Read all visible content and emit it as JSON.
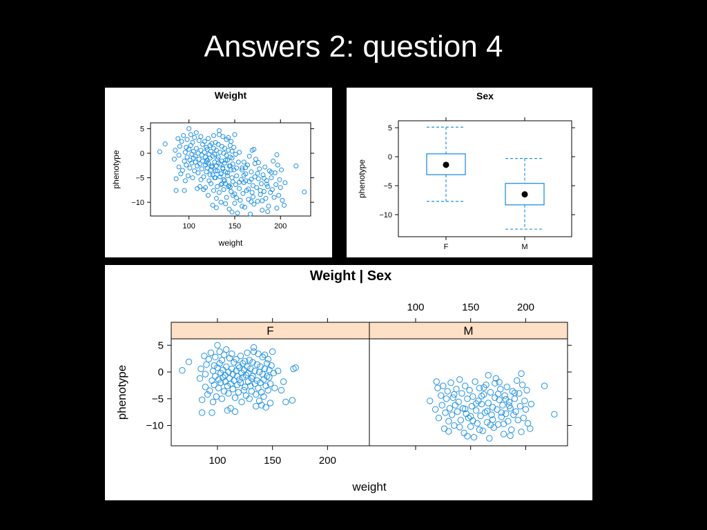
{
  "slide": {
    "title": "Answers 2: question 4"
  },
  "colors": {
    "points": "#1e90e6",
    "strip": "#fde0c5",
    "background": "#000000",
    "panel": "#ffffff"
  },
  "chart_data": [
    {
      "id": "weight",
      "type": "scatter",
      "title": "Weight",
      "xlabel": "weight",
      "ylabel": "phenotype",
      "xlim": [
        58,
        233
      ],
      "ylim": [
        -12.8,
        6.2
      ],
      "xticks": [
        100,
        150,
        200
      ],
      "yticks": [
        5,
        0,
        -5,
        -10
      ],
      "note": "union of F and M points"
    },
    {
      "id": "sex",
      "type": "box",
      "title": "Sex",
      "xlabel": "",
      "ylabel": "phenotype",
      "categories": [
        "F",
        "M"
      ],
      "ylim": [
        -13.8,
        6.2
      ],
      "yticks": [
        5,
        0,
        -5,
        -10
      ],
      "boxes": [
        {
          "category": "F",
          "whisker_low": -7.7,
          "q1": -3.1,
          "median": -1.4,
          "q3": 0.5,
          "whisker_high": 5.1
        },
        {
          "category": "M",
          "whisker_low": -12.5,
          "q1": -8.3,
          "median": -6.5,
          "q3": -4.6,
          "whisker_high": -0.3
        }
      ]
    },
    {
      "id": "weight-by-sex",
      "type": "scatter",
      "title": "Weight | Sex",
      "xlabel": "weight",
      "ylabel": "phenotype",
      "xlim": [
        58,
        238
      ],
      "ylim": [
        -13.8,
        6.2
      ],
      "xticks": [
        100,
        150,
        200
      ],
      "yticks": [
        5,
        0,
        -5,
        -10
      ],
      "panels": [
        {
          "strip": "F",
          "points": [
            [
              68,
              0.3
            ],
            [
              74,
              1.9
            ],
            [
              84,
              -1.2
            ],
            [
              85,
              0.6
            ],
            [
              86,
              -5.2
            ],
            [
              86,
              -7.6
            ],
            [
              88,
              3.0
            ],
            [
              89,
              -0.4
            ],
            [
              89,
              -2.8
            ],
            [
              90,
              1.4
            ],
            [
              91,
              -4.2
            ],
            [
              92,
              2.4
            ],
            [
              93,
              -3.5
            ],
            [
              94,
              3.6
            ],
            [
              95,
              -1.6
            ],
            [
              95,
              -7.6
            ],
            [
              96,
              0.2
            ],
            [
              96,
              -5.6
            ],
            [
              97,
              1.2
            ],
            [
              97,
              -2.4
            ],
            [
              98,
              2.8
            ],
            [
              98,
              -0.8
            ],
            [
              99,
              -4.6
            ],
            [
              100,
              0.8
            ],
            [
              100,
              5.0
            ],
            [
              101,
              -1.4
            ],
            [
              101,
              -3.0
            ],
            [
              102,
              3.8
            ],
            [
              102,
              1.6
            ],
            [
              103,
              -0.2
            ],
            [
              103,
              -2.0
            ],
            [
              104,
              -5.0
            ],
            [
              104,
              2.2
            ],
            [
              105,
              -1.0
            ],
            [
              105,
              0.4
            ],
            [
              106,
              -3.6
            ],
            [
              106,
              3.2
            ],
            [
              107,
              -1.8
            ],
            [
              107,
              -0.6
            ],
            [
              108,
              4.2
            ],
            [
              108,
              1.0
            ],
            [
              109,
              -2.6
            ],
            [
              109,
              -7.2
            ],
            [
              110,
              0.0
            ],
            [
              110,
              -4.0
            ],
            [
              111,
              2.6
            ],
            [
              111,
              -1.2
            ],
            [
              112,
              -2.2
            ],
            [
              112,
              -6.8
            ],
            [
              113,
              0.6
            ],
            [
              113,
              3.4
            ],
            [
              114,
              -3.2
            ],
            [
              114,
              -0.4
            ],
            [
              115,
              1.8
            ],
            [
              115,
              -1.6
            ],
            [
              116,
              -4.8
            ],
            [
              116,
              -7.4
            ],
            [
              117,
              0.2
            ],
            [
              117,
              2.4
            ],
            [
              118,
              -2.4
            ],
            [
              118,
              -0.8
            ],
            [
              119,
              1.2
            ],
            [
              119,
              -3.8
            ],
            [
              120,
              -1.4
            ],
            [
              120,
              0.8
            ],
            [
              121,
              3.0
            ],
            [
              121,
              -2.0
            ],
            [
              122,
              -0.2
            ],
            [
              122,
              -5.6
            ],
            [
              123,
              1.6
            ],
            [
              123,
              -1.0
            ],
            [
              124,
              -3.4
            ],
            [
              124,
              0.4
            ],
            [
              125,
              2.0
            ],
            [
              125,
              -2.8
            ],
            [
              126,
              -0.6
            ],
            [
              126,
              -4.4
            ],
            [
              127,
              1.0
            ],
            [
              127,
              3.6
            ],
            [
              128,
              -1.8
            ],
            [
              128,
              -0.2
            ],
            [
              129,
              -5.0
            ],
            [
              129,
              2.2
            ],
            [
              130,
              -2.6
            ],
            [
              130,
              0.6
            ],
            [
              131,
              -1.2
            ],
            [
              131,
              -3.6
            ],
            [
              132,
              1.8
            ],
            [
              132,
              -0.8
            ],
            [
              133,
              4.6
            ],
            [
              133,
              3.8
            ],
            [
              134,
              -2.2
            ],
            [
              134,
              0.2
            ],
            [
              135,
              -4.2
            ],
            [
              135,
              -6.4
            ],
            [
              136,
              1.4
            ],
            [
              136,
              -1.6
            ],
            [
              137,
              -3.0
            ],
            [
              137,
              3.4
            ],
            [
              138,
              0.0
            ],
            [
              138,
              -5.4
            ],
            [
              139,
              -2.0
            ],
            [
              139,
              1.0
            ],
            [
              140,
              -6.2
            ],
            [
              140,
              -3.8
            ],
            [
              141,
              2.8
            ],
            [
              141,
              -0.4
            ],
            [
              142,
              -1.4
            ],
            [
              142,
              -4.6
            ],
            [
              143,
              0.6
            ],
            [
              143,
              3.2
            ],
            [
              144,
              -2.6
            ],
            [
              144,
              -6.6
            ],
            [
              145,
              1.6
            ],
            [
              145,
              -0.8
            ],
            [
              146,
              -3.4
            ],
            [
              146,
              2.4
            ],
            [
              147,
              -1.0
            ],
            [
              147,
              0.4
            ],
            [
              148,
              -5.8
            ],
            [
              148,
              -2.2
            ],
            [
              149,
              1.2
            ],
            [
              150,
              3.8
            ],
            [
              151,
              -0.2
            ],
            [
              152,
              -3.0
            ],
            [
              155,
              0.2
            ],
            [
              158,
              -3.4
            ],
            [
              160,
              -1.8
            ],
            [
              162,
              -5.6
            ],
            [
              168,
              -5.3
            ],
            [
              169,
              0.6
            ],
            [
              171,
              0.8
            ]
          ]
        },
        {
          "strip": "M",
          "points": [
            [
              113,
              -5.4
            ],
            [
              118,
              -7.0
            ],
            [
              119,
              -1.8
            ],
            [
              120,
              -3.0
            ],
            [
              121,
              -8.6
            ],
            [
              123,
              -4.4
            ],
            [
              124,
              -6.2
            ],
            [
              125,
              -2.6
            ],
            [
              126,
              -10.6
            ],
            [
              127,
              -7.6
            ],
            [
              128,
              -5.0
            ],
            [
              129,
              -3.6
            ],
            [
              130,
              -9.2
            ],
            [
              131,
              -6.8
            ],
            [
              132,
              -2.0
            ],
            [
              133,
              -8.0
            ],
            [
              134,
              -4.8
            ],
            [
              135,
              -10.0
            ],
            [
              136,
              -6.2
            ],
            [
              137,
              -3.2
            ],
            [
              138,
              -7.4
            ],
            [
              139,
              -5.6
            ],
            [
              140,
              -1.4
            ],
            [
              141,
              -9.0
            ],
            [
              142,
              -4.0
            ],
            [
              143,
              -6.8
            ],
            [
              144,
              -11.4
            ],
            [
              145,
              -2.6
            ],
            [
              146,
              -7.8
            ],
            [
              147,
              -5.0
            ],
            [
              148,
              -8.6
            ],
            [
              149,
              -3.4
            ],
            [
              150,
              -10.2
            ],
            [
              151,
              -6.4
            ],
            [
              152,
              -4.6
            ],
            [
              153,
              -12.2
            ],
            [
              154,
              -1.8
            ],
            [
              155,
              -7.2
            ],
            [
              156,
              -9.6
            ],
            [
              157,
              -5.4
            ],
            [
              158,
              -3.0
            ],
            [
              159,
              -8.2
            ],
            [
              160,
              -6.0
            ],
            [
              161,
              -11.0
            ],
            [
              162,
              -4.2
            ],
            [
              163,
              -7.6
            ],
            [
              164,
              -2.4
            ],
            [
              165,
              -9.4
            ],
            [
              166,
              -5.8
            ],
            [
              167,
              -12.4
            ],
            [
              168,
              -3.8
            ],
            [
              169,
              -8.0
            ],
            [
              170,
              -6.6
            ],
            [
              171,
              -10.4
            ],
            [
              172,
              -4.8
            ],
            [
              173,
              -1.2
            ],
            [
              174,
              -7.0
            ],
            [
              175,
              -9.8
            ],
            [
              176,
              -5.2
            ],
            [
              177,
              -3.2
            ],
            [
              178,
              -8.4
            ],
            [
              179,
              -6.2
            ],
            [
              180,
              -11.6
            ],
            [
              181,
              -4.4
            ],
            [
              182,
              -7.8
            ],
            [
              183,
              -2.8
            ],
            [
              184,
              -9.2
            ],
            [
              185,
              -5.6
            ],
            [
              186,
              -6.8
            ],
            [
              187,
              -10.8
            ],
            [
              188,
              -3.6
            ],
            [
              189,
              -8.0
            ],
            [
              190,
              -5.0
            ],
            [
              191,
              -7.4
            ],
            [
              192,
              -1.6
            ],
            [
              193,
              -9.0
            ],
            [
              194,
              -4.0
            ],
            [
              195,
              -6.4
            ],
            [
              196,
              -11.2
            ],
            [
              197,
              -2.4
            ],
            [
              198,
              -8.6
            ],
            [
              199,
              -5.4
            ],
            [
              200,
              -7.0
            ],
            [
              201,
              -3.4
            ],
            [
              202,
              -9.6
            ],
            [
              204,
              -10.6
            ],
            [
              205,
              -6.0
            ],
            [
              217,
              -2.6
            ],
            [
              226,
              -7.9
            ],
            [
              145,
              -6.9
            ],
            [
              150,
              -8.3
            ],
            [
              155,
              -5.9
            ],
            [
              160,
              -4.5
            ],
            [
              165,
              -7.3
            ],
            [
              170,
              -8.9
            ],
            [
              175,
              -4.1
            ],
            [
              180,
              -9.7
            ],
            [
              185,
              -6.3
            ],
            [
              190,
              -3.9
            ],
            [
              158,
              -10.8
            ],
            [
              168,
              -9.9
            ],
            [
              178,
              -7.6
            ],
            [
              162,
              -2.9
            ],
            [
              172,
              -2.1
            ],
            [
              152,
              -9.1
            ],
            [
              182,
              -5.1
            ],
            [
              166,
              -0.6
            ],
            [
              176,
              -1.9
            ],
            [
              186,
              -11.9
            ],
            [
              196,
              -0.3
            ],
            [
              130,
              -11.1
            ],
            [
              140,
              -10.3
            ],
            [
              135,
              -4.2
            ],
            [
              147,
              -12.0
            ]
          ]
        }
      ]
    }
  ]
}
